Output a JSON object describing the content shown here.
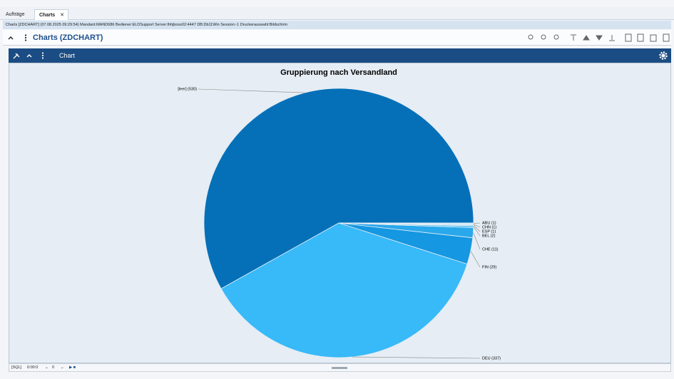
{
  "tabs": [
    "Aufträge",
    "Charts"
  ],
  "status_line": "Charts [ZDCHART] (07.08.2025 09:29:54) Mandant:MAND686 Bediener:ELDSupport Server:lhhjboss02:4447 DB:Db11Win Session:-1 Druckerauswahl:Bildschirm",
  "toolbar": {
    "title": "Charts (ZDCHART)"
  },
  "panel": {
    "title": "Chart"
  },
  "footer": {
    "sql": "[SQL]",
    "time": "0:00:0",
    "field_1": "0",
    "field_2": "0"
  },
  "chart_data": {
    "type": "pie",
    "title": "Gruppierung nach Versandland",
    "labels": [
      "[leer] (530)",
      "DEU (337)",
      "FIN (29)",
      "CHE (11)",
      "BEL (2)",
      "ESP (1)",
      "CHN (1)",
      "ABU (1)"
    ],
    "values": [
      530,
      337,
      29,
      11,
      2,
      1,
      1,
      1
    ],
    "colors": [
      "#0570b8",
      "#38b9f8",
      "#1597e1",
      "#2aa8ec",
      "#56c2f4",
      "#7fd1f6",
      "#a6def8",
      "#cdeefb"
    ]
  }
}
